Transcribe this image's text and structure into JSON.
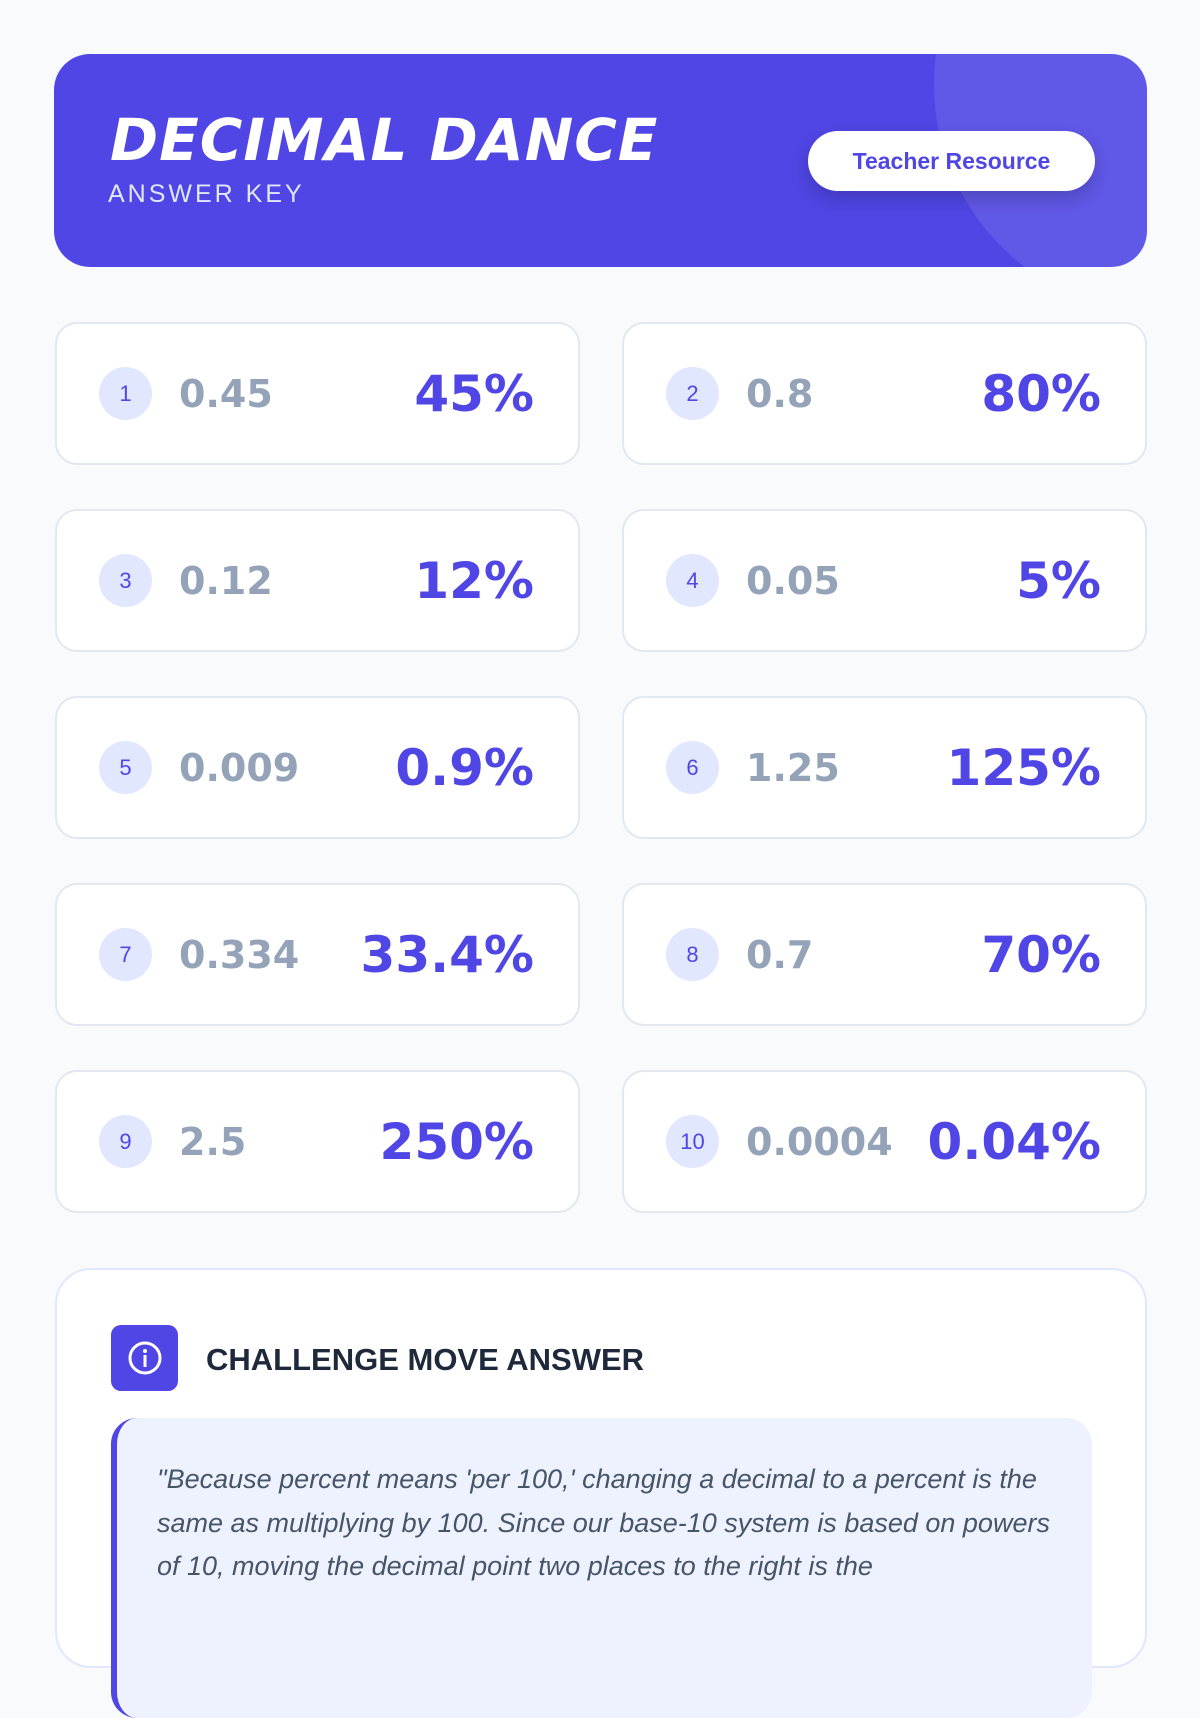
{
  "header": {
    "title": "DECIMAL DANCE",
    "subtitle": "ANSWER KEY",
    "badge": "Teacher Resource"
  },
  "answers": [
    {
      "n": "1",
      "decimal": "0.45",
      "percent": "45%"
    },
    {
      "n": "2",
      "decimal": "0.8",
      "percent": "80%"
    },
    {
      "n": "3",
      "decimal": "0.12",
      "percent": "12%"
    },
    {
      "n": "4",
      "decimal": "0.05",
      "percent": "5%"
    },
    {
      "n": "5",
      "decimal": "0.009",
      "percent": "0.9%"
    },
    {
      "n": "6",
      "decimal": "1.25",
      "percent": "125%"
    },
    {
      "n": "7",
      "decimal": "0.334",
      "percent": "33.4%"
    },
    {
      "n": "8",
      "decimal": "0.7",
      "percent": "70%"
    },
    {
      "n": "9",
      "decimal": "2.5",
      "percent": "250%"
    },
    {
      "n": "10",
      "decimal": "0.0004",
      "percent": "0.04%"
    }
  ],
  "challenge": {
    "icon": "info-icon",
    "title": "CHALLENGE MOVE ANSWER",
    "quote": "\"Because percent means 'per 100,' changing a decimal to a percent is the same as multiplying by 100. Since our base-10 system is based on powers of 10, moving the decimal point two places to the right is the"
  },
  "colors": {
    "accent": "#4f46e5",
    "badge_bg": "#e0e7ff",
    "decimal": "#94a3b8"
  }
}
